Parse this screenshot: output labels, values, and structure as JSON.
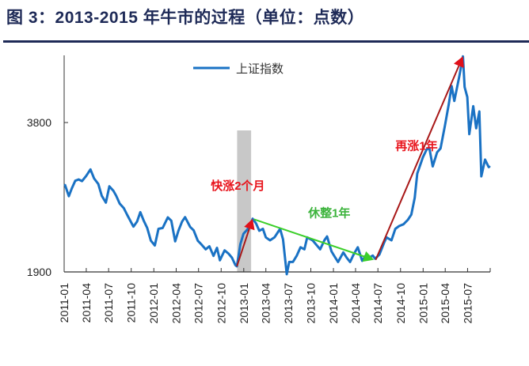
{
  "title": "图 3：2013-2015 年牛市的过程（单位：点数）",
  "chart_data": {
    "type": "line",
    "title": "图 3：2013-2015 年牛市的过程（单位：点数）",
    "xlabel": "",
    "ylabel": "",
    "y_scale": "log",
    "ylim": [
      1900,
      5300
    ],
    "xlim": [
      "2011-01-01",
      "2015-10-01"
    ],
    "grid": false,
    "legend_position": "top-center",
    "y_ticks": [
      {
        "value": 1900,
        "label": "1900"
      },
      {
        "value": 3800,
        "label": "3800"
      }
    ],
    "x_ticks": [
      "2011-01",
      "2011-04",
      "2011-07",
      "2011-10",
      "2012-01",
      "2012-04",
      "2012-07",
      "2012-10",
      "2013-01",
      "2013-04",
      "2013-07",
      "2013-10",
      "2014-01",
      "2014-04",
      "2014-07",
      "2014-10",
      "2015-01",
      "2015-04",
      "2015-07"
    ],
    "series": [
      {
        "name": "上证指数",
        "color": "#1a72c4",
        "points": [
          [
            "2011-01-04",
            2852
          ],
          [
            "2011-01-20",
            2700
          ],
          [
            "2011-02-01",
            2798
          ],
          [
            "2011-02-15",
            2900
          ],
          [
            "2011-03-01",
            2918
          ],
          [
            "2011-03-15",
            2896
          ],
          [
            "2011-04-01",
            2968
          ],
          [
            "2011-04-18",
            3057
          ],
          [
            "2011-05-03",
            2930
          ],
          [
            "2011-05-20",
            2858
          ],
          [
            "2011-06-03",
            2705
          ],
          [
            "2011-06-20",
            2621
          ],
          [
            "2011-07-04",
            2827
          ],
          [
            "2011-07-20",
            2770
          ],
          [
            "2011-08-01",
            2704
          ],
          [
            "2011-08-15",
            2609
          ],
          [
            "2011-09-01",
            2553
          ],
          [
            "2011-09-15",
            2474
          ],
          [
            "2011-10-10",
            2344
          ],
          [
            "2011-10-25",
            2400
          ],
          [
            "2011-11-07",
            2507
          ],
          [
            "2011-11-21",
            2410
          ],
          [
            "2011-12-05",
            2330
          ],
          [
            "2011-12-20",
            2197
          ],
          [
            "2012-01-05",
            2148
          ],
          [
            "2012-01-20",
            2320
          ],
          [
            "2012-02-06",
            2330
          ],
          [
            "2012-02-27",
            2447
          ],
          [
            "2012-03-12",
            2410
          ],
          [
            "2012-03-28",
            2190
          ],
          [
            "2012-04-10",
            2300
          ],
          [
            "2012-04-25",
            2400
          ],
          [
            "2012-05-07",
            2450
          ],
          [
            "2012-05-28",
            2340
          ],
          [
            "2012-06-11",
            2305
          ],
          [
            "2012-06-28",
            2195
          ],
          [
            "2012-07-12",
            2160
          ],
          [
            "2012-07-30",
            2110
          ],
          [
            "2012-08-14",
            2140
          ],
          [
            "2012-08-31",
            2047
          ],
          [
            "2012-09-14",
            2125
          ],
          [
            "2012-09-26",
            2005
          ],
          [
            "2012-10-15",
            2100
          ],
          [
            "2012-10-31",
            2068
          ],
          [
            "2012-11-14",
            2030
          ],
          [
            "2012-11-28",
            1960
          ],
          [
            "2012-12-04",
            1950
          ],
          [
            "2012-12-18",
            2160
          ],
          [
            "2012-12-31",
            2269
          ],
          [
            "2013-01-15",
            2310
          ],
          [
            "2013-01-31",
            2385
          ],
          [
            "2013-02-06",
            2432
          ],
          [
            "2013-02-20",
            2380
          ],
          [
            "2013-03-05",
            2300
          ],
          [
            "2013-03-20",
            2320
          ],
          [
            "2013-04-01",
            2230
          ],
          [
            "2013-04-18",
            2200
          ],
          [
            "2013-05-06",
            2230
          ],
          [
            "2013-05-29",
            2320
          ],
          [
            "2013-06-10",
            2210
          ],
          [
            "2013-06-25",
            1880
          ],
          [
            "2013-07-05",
            1990
          ],
          [
            "2013-07-20",
            1990
          ],
          [
            "2013-08-05",
            2050
          ],
          [
            "2013-08-20",
            2130
          ],
          [
            "2013-09-05",
            2110
          ],
          [
            "2013-09-16",
            2230
          ],
          [
            "2013-10-08",
            2200
          ],
          [
            "2013-10-25",
            2150
          ],
          [
            "2013-11-08",
            2110
          ],
          [
            "2013-11-25",
            2200
          ],
          [
            "2013-12-06",
            2240
          ],
          [
            "2013-12-24",
            2090
          ],
          [
            "2014-01-06",
            2040
          ],
          [
            "2014-01-20",
            1990
          ],
          [
            "2014-02-10",
            2080
          ],
          [
            "2014-02-24",
            2030
          ],
          [
            "2014-03-10",
            1990
          ],
          [
            "2014-03-24",
            2060
          ],
          [
            "2014-04-10",
            2130
          ],
          [
            "2014-04-28",
            2000
          ],
          [
            "2014-05-12",
            2050
          ],
          [
            "2014-05-26",
            2030
          ],
          [
            "2014-06-10",
            2050
          ],
          [
            "2014-06-20",
            2020
          ],
          [
            "2014-07-07",
            2060
          ],
          [
            "2014-07-25",
            2170
          ],
          [
            "2014-08-05",
            2230
          ],
          [
            "2014-08-25",
            2200
          ],
          [
            "2014-09-10",
            2320
          ],
          [
            "2014-09-25",
            2350
          ],
          [
            "2014-10-13",
            2370
          ],
          [
            "2014-10-31",
            2420
          ],
          [
            "2014-11-14",
            2480
          ],
          [
            "2014-11-28",
            2680
          ],
          [
            "2014-12-08",
            3000
          ],
          [
            "2014-12-31",
            3234
          ],
          [
            "2015-01-15",
            3350
          ],
          [
            "2015-01-26",
            3380
          ],
          [
            "2015-02-09",
            3100
          ],
          [
            "2015-02-27",
            3310
          ],
          [
            "2015-03-13",
            3370
          ],
          [
            "2015-03-31",
            3750
          ],
          [
            "2015-04-15",
            4130
          ],
          [
            "2015-04-27",
            4500
          ],
          [
            "2015-05-08",
            4200
          ],
          [
            "2015-05-28",
            4700
          ],
          [
            "2015-06-12",
            5166
          ],
          [
            "2015-06-19",
            4480
          ],
          [
            "2015-06-30",
            4277
          ],
          [
            "2015-07-08",
            3600
          ],
          [
            "2015-07-24",
            4100
          ],
          [
            "2015-08-05",
            3700
          ],
          [
            "2015-08-18",
            4000
          ],
          [
            "2015-08-26",
            2960
          ],
          [
            "2015-09-10",
            3200
          ],
          [
            "2015-09-25",
            3090
          ],
          [
            "2015-09-30",
            3100
          ]
        ]
      }
    ],
    "shaded_period": {
      "from": "2012-12-05",
      "to": "2013-01-31",
      "color": "#c8c8c8"
    },
    "annotations": [
      {
        "text": "快涨2个月",
        "color": "#e8141c",
        "at": [
          "2012-08-20",
          2780
        ],
        "arrow_from": [
          "2012-12-04",
          1950
        ],
        "arrow_to": [
          "2013-02-06",
          2432
        ],
        "arrow_color": "#a81818",
        "head_color": "#e0101a"
      },
      {
        "text": "休整1年",
        "color": "#3bb33b",
        "at": [
          "2013-09-20",
          2450
        ],
        "arrow_from": [
          "2013-02-12",
          2425
        ],
        "arrow_to": [
          "2014-06-15",
          2010
        ],
        "arrow_color": "#3ccf2a",
        "head_color": "#3ccf2a"
      },
      {
        "text": "再涨1年",
        "color": "#e8141c",
        "at": [
          "2014-09-10",
          3350
        ],
        "arrow_from": [
          "2014-06-22",
          2010
        ],
        "arrow_to": [
          "2015-06-12",
          5166
        ],
        "arrow_color": "#a81818",
        "head_color": "#e0101a"
      }
    ]
  }
}
